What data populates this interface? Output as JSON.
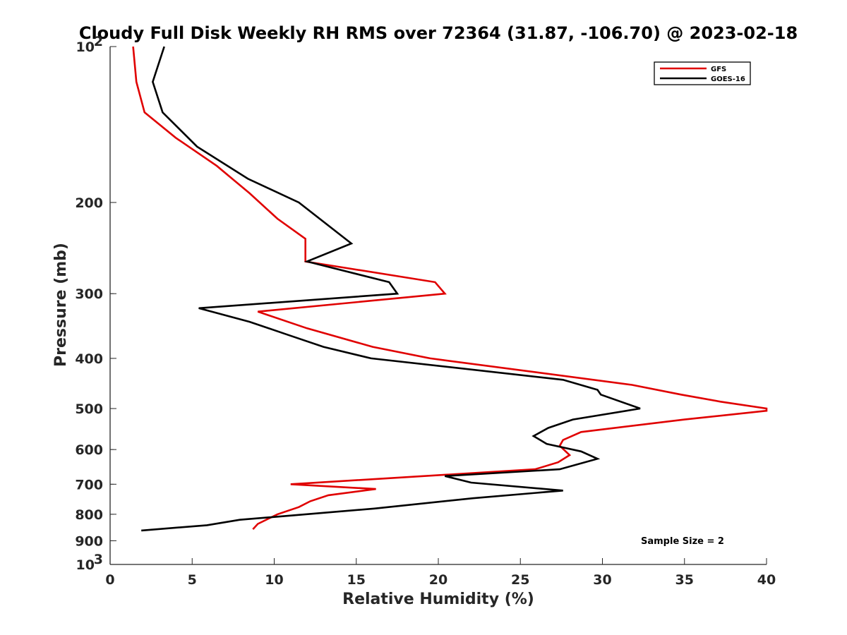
{
  "chart_data": {
    "type": "line",
    "title": "Cloudy Full Disk Weekly RH RMS over 72364 (31.87, -106.70) @ 2023-02-18",
    "xlabel": "Relative Humidity (%)",
    "ylabel": "Pressure (mb)",
    "xlim": [
      0,
      40
    ],
    "ylim": [
      100,
      1000
    ],
    "y_scale": "log",
    "y_reversed": true,
    "x_ticks": [
      0,
      5,
      10,
      15,
      20,
      25,
      30,
      35,
      40
    ],
    "y_ticks": [
      {
        "value": 100,
        "label": "10",
        "sup": "2"
      },
      {
        "value": 200,
        "label": "200"
      },
      {
        "value": 300,
        "label": "300"
      },
      {
        "value": 400,
        "label": "400"
      },
      {
        "value": 500,
        "label": "500"
      },
      {
        "value": 600,
        "label": "600"
      },
      {
        "value": 700,
        "label": "700"
      },
      {
        "value": 800,
        "label": "800"
      },
      {
        "value": 900,
        "label": "900"
      },
      {
        "value": 1000,
        "label": "10",
        "sup": "3"
      }
    ],
    "grid": false,
    "legend_position": "top-right",
    "annotation": "Sample Size = 2",
    "series": [
      {
        "name": "GFS",
        "color": "#e00000",
        "points": [
          [
            1.4,
            100
          ],
          [
            1.6,
            117
          ],
          [
            2.1,
            134
          ],
          [
            4.0,
            150
          ],
          [
            6.5,
            170
          ],
          [
            8.5,
            192
          ],
          [
            10.2,
            215
          ],
          [
            11.9,
            235
          ],
          [
            11.9,
            260
          ],
          [
            19.8,
            285
          ],
          [
            20.4,
            300
          ],
          [
            9.0,
            325
          ],
          [
            12.0,
            350
          ],
          [
            16.0,
            380
          ],
          [
            19.5,
            400
          ],
          [
            31.8,
            450
          ],
          [
            34.8,
            470
          ],
          [
            37.2,
            485
          ],
          [
            40.0,
            500
          ],
          [
            40.0,
            505
          ],
          [
            35.0,
            525
          ],
          [
            28.7,
            555
          ],
          [
            27.6,
            575
          ],
          [
            27.4,
            590
          ],
          [
            28.0,
            615
          ],
          [
            27.3,
            635
          ],
          [
            25.9,
            655
          ],
          [
            11.0,
            700
          ],
          [
            16.2,
            715
          ],
          [
            13.3,
            735
          ],
          [
            12.2,
            755
          ],
          [
            11.5,
            775
          ],
          [
            10.2,
            800
          ],
          [
            9.0,
            835
          ],
          [
            8.7,
            855
          ]
        ]
      },
      {
        "name": "GOES-16",
        "color": "#000000",
        "points": [
          [
            3.3,
            100
          ],
          [
            2.6,
            117
          ],
          [
            3.2,
            134
          ],
          [
            5.3,
            156
          ],
          [
            8.4,
            180
          ],
          [
            11.5,
            200
          ],
          [
            14.7,
            240
          ],
          [
            12.0,
            260
          ],
          [
            17.0,
            285
          ],
          [
            17.5,
            300
          ],
          [
            5.4,
            320
          ],
          [
            8.5,
            340
          ],
          [
            10.8,
            360
          ],
          [
            13.0,
            380
          ],
          [
            15.9,
            400
          ],
          [
            27.6,
            440
          ],
          [
            29.7,
            460
          ],
          [
            29.9,
            470
          ],
          [
            32.3,
            500
          ],
          [
            28.2,
            525
          ],
          [
            26.7,
            545
          ],
          [
            25.8,
            565
          ],
          [
            26.6,
            585
          ],
          [
            28.7,
            605
          ],
          [
            29.7,
            625
          ],
          [
            27.4,
            655
          ],
          [
            20.4,
            675
          ],
          [
            22.0,
            695
          ],
          [
            27.6,
            720
          ],
          [
            22.1,
            745
          ],
          [
            16.1,
            780
          ],
          [
            10.9,
            805
          ],
          [
            7.9,
            820
          ],
          [
            5.9,
            840
          ],
          [
            1.9,
            860
          ]
        ]
      }
    ]
  }
}
